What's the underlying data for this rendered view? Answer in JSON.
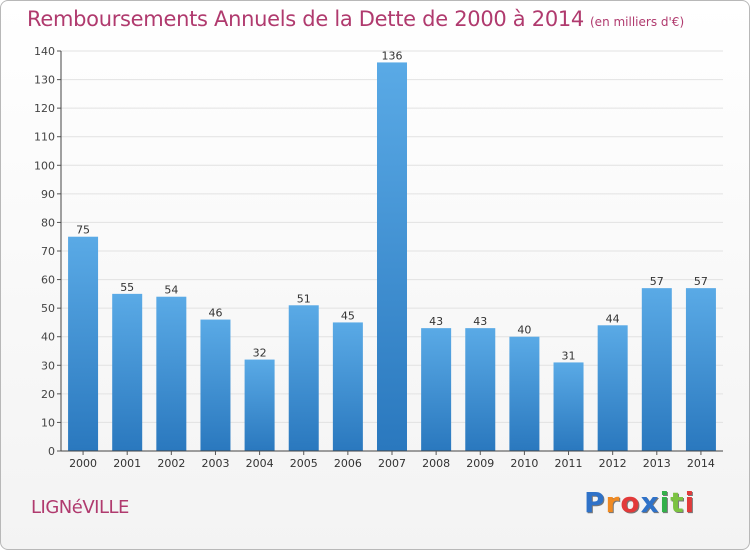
{
  "title": "Remboursements Annuels de la Dette de 2000 à 2014",
  "unit": "(en milliers d'€)",
  "commune": "LIGNéVILLE",
  "brand": "Proxiti",
  "colors": {
    "title": "#b03a6e",
    "bar_light": "#5aaae6",
    "bar_dark": "#2a78be",
    "brand_letters": [
      "#2f72c8",
      "#f08a22",
      "#e23a3a",
      "#2f72c8",
      "#33b04a",
      "#7cc342",
      "#e23a3a"
    ]
  },
  "chart_data": {
    "type": "bar",
    "title": "Remboursements Annuels de la Dette de 2000 à 2014",
    "unit": "(en milliers d'€)",
    "categories": [
      "2000",
      "2001",
      "2002",
      "2003",
      "2004",
      "2005",
      "2006",
      "2007",
      "2008",
      "2009",
      "2010",
      "2011",
      "2012",
      "2013",
      "2014"
    ],
    "values": [
      75,
      55,
      54,
      46,
      32,
      51,
      45,
      136,
      43,
      43,
      40,
      31,
      44,
      57,
      57
    ],
    "ylim": [
      0,
      140
    ],
    "yticks": [
      0,
      10,
      20,
      30,
      40,
      50,
      60,
      70,
      80,
      90,
      100,
      110,
      120,
      130,
      140
    ],
    "grid": true,
    "data_labels": true
  }
}
